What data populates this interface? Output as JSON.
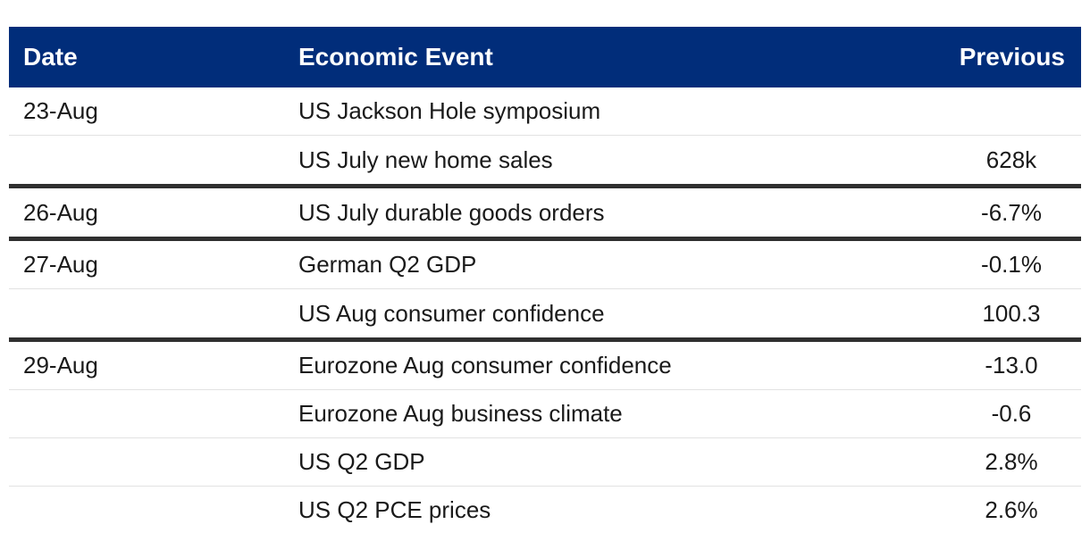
{
  "table": {
    "headers": {
      "date": "Date",
      "event": "Economic Event",
      "previous": "Previous"
    },
    "rows": [
      {
        "date": "23-Aug",
        "event": "US Jackson Hole symposium",
        "previous": ""
      },
      {
        "date": "",
        "event": "US July new home sales",
        "previous": "628k"
      },
      {
        "date": "26-Aug",
        "event": "US July durable goods orders",
        "previous": "-6.7%"
      },
      {
        "date": "27-Aug",
        "event": "German Q2 GDP",
        "previous": "-0.1%"
      },
      {
        "date": "",
        "event": "US Aug consumer confidence",
        "previous": "100.3"
      },
      {
        "date": "29-Aug",
        "event": "Eurozone Aug consumer confidence",
        "previous": "-13.0"
      },
      {
        "date": "",
        "event": "Eurozone Aug business climate",
        "previous": "-0.6"
      },
      {
        "date": "",
        "event": "US Q2 GDP",
        "previous": "2.8%"
      },
      {
        "date": "",
        "event": "US Q2 PCE prices",
        "previous": "2.6%"
      }
    ]
  },
  "colors": {
    "header_background": "#012d7a",
    "header_text": "#ffffff",
    "group_divider": "#2f2f2f",
    "row_divider": "#e2e2e2"
  }
}
